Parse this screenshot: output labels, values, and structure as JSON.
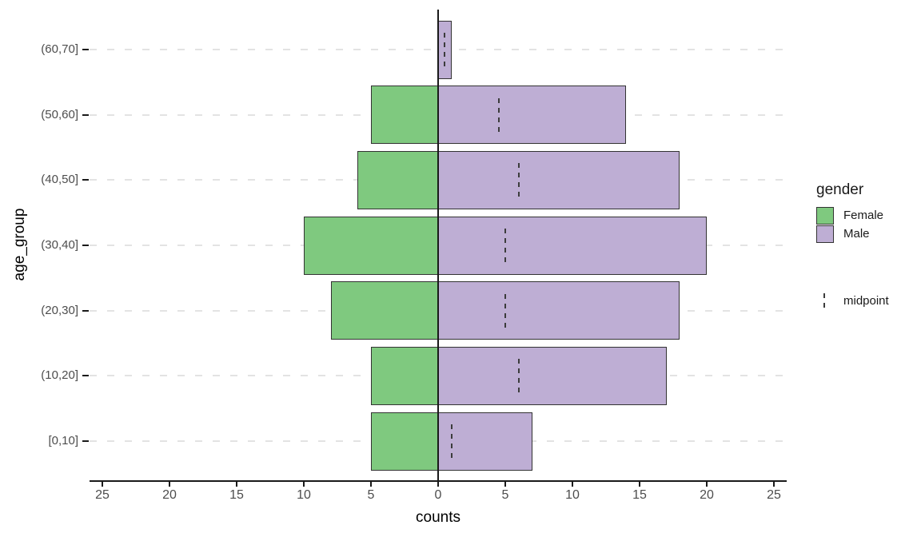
{
  "figure": {
    "x_axis_title": "counts",
    "y_axis_title": "age_group"
  },
  "legend": {
    "title": "gender",
    "items": [
      {
        "label": "Female",
        "color": "#7FC97F"
      },
      {
        "label": "Male",
        "color": "#BEAED4"
      }
    ],
    "midpoint_label": "midpoint"
  },
  "chart_data": {
    "type": "bar",
    "subtype": "diverging-population-pyramid",
    "orientation": "horizontal",
    "title": "",
    "xlabel": "counts",
    "ylabel": "age_group",
    "xlim": [
      -25,
      25
    ],
    "x_tick_values": [
      -25,
      -20,
      -15,
      -10,
      -5,
      0,
      5,
      10,
      15,
      20,
      25
    ],
    "x_tick_labels": [
      "25",
      "20",
      "15",
      "10",
      "5",
      "0",
      "5",
      "10",
      "15",
      "20",
      "25"
    ],
    "categories_top_to_bottom": [
      "(60,70]",
      "(50,60]",
      "(40,50]",
      "(30,40]",
      "(20,30]",
      "(10,20]",
      "[0,10]"
    ],
    "series": [
      {
        "name": "Female",
        "direction": "left",
        "color": "#7FC97F",
        "values": [
          0,
          5,
          6,
          10,
          8,
          5,
          5
        ]
      },
      {
        "name": "Male",
        "direction": "right",
        "color": "#BEAED4",
        "values": [
          1,
          14,
          18,
          20,
          18,
          17,
          7
        ]
      }
    ],
    "midpoints": {
      "name": "midpoint",
      "linetype": "dashed",
      "values": [
        0.5,
        4.5,
        6,
        5,
        5,
        6,
        1
      ]
    },
    "zero_reference_line": true,
    "grid": "horizontal dashed major gridlines",
    "legend_position": "right"
  },
  "colors": {
    "female": "#7FC97F",
    "male": "#BEAED4",
    "bar_border": "#333333",
    "axis": "#1a1a1a",
    "tick_label": "#4D4D4D",
    "gridline": "#E3E3E3",
    "midpoint_line": "#3C3C3C",
    "background": "#FFFFFF"
  }
}
